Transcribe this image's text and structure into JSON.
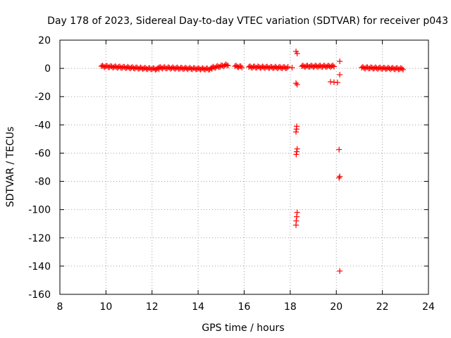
{
  "chart_data": {
    "type": "scatter",
    "title": "Day 178 of 2023, Sidereal Day-to-day VTEC variation (SDTVAR) for receiver p043",
    "xlabel": "GPS time / hours",
    "ylabel": "SDTVAR / TECUs",
    "xlim": [
      8,
      24
    ],
    "ylim": [
      -160,
      20
    ],
    "xticks": [
      8,
      10,
      12,
      14,
      16,
      18,
      20,
      22,
      24
    ],
    "yticks": [
      20,
      0,
      -20,
      -40,
      -60,
      -80,
      -100,
      -120,
      -140,
      -160
    ],
    "grid": true,
    "marker": "plus",
    "color": "#ff0000",
    "series": [
      {
        "name": "SDTVAR",
        "segments": [
          {
            "x_start": 9.8,
            "x_end": 12.3,
            "y_start": 1.5,
            "y_end": -0.5
          },
          {
            "x_start": 12.3,
            "x_end": 14.6,
            "y_start": 0.5,
            "y_end": -0.5
          },
          {
            "x_start": 14.6,
            "x_end": 15.3,
            "y_start": 0.5,
            "y_end": 2.5
          },
          {
            "x_start": 15.6,
            "x_end": 15.9,
            "y_start": 1.5,
            "y_end": 1.0
          },
          {
            "x_start": 16.2,
            "x_end": 17.9,
            "y_start": 1.0,
            "y_end": 0.5
          },
          {
            "x_start": 18.5,
            "x_end": 19.9,
            "y_start": 1.5,
            "y_end": 1.5
          },
          {
            "x_start": 21.1,
            "x_end": 22.9,
            "y_start": 0.5,
            "y_end": -0.3
          }
        ],
        "points": [
          {
            "x": 18.25,
            "y": 12
          },
          {
            "x": 18.3,
            "y": 10.5
          },
          {
            "x": 18.08,
            "y": 0.5
          },
          {
            "x": 18.25,
            "y": -10.5
          },
          {
            "x": 18.3,
            "y": -11.5
          },
          {
            "x": 18.28,
            "y": -41
          },
          {
            "x": 18.27,
            "y": -43
          },
          {
            "x": 18.25,
            "y": -45
          },
          {
            "x": 18.3,
            "y": -57
          },
          {
            "x": 18.28,
            "y": -59
          },
          {
            "x": 18.26,
            "y": -61
          },
          {
            "x": 18.3,
            "y": -102
          },
          {
            "x": 18.28,
            "y": -105
          },
          {
            "x": 18.26,
            "y": -108
          },
          {
            "x": 18.25,
            "y": -111
          },
          {
            "x": 19.75,
            "y": -9.5
          },
          {
            "x": 19.9,
            "y": -9.8
          },
          {
            "x": 20.05,
            "y": -10.0
          },
          {
            "x": 20.15,
            "y": 5
          },
          {
            "x": 20.15,
            "y": -4.5
          },
          {
            "x": 20.12,
            "y": -57.5
          },
          {
            "x": 20.15,
            "y": -76.5
          },
          {
            "x": 20.12,
            "y": -77.5
          },
          {
            "x": 20.15,
            "y": -143.5
          }
        ]
      }
    ]
  }
}
